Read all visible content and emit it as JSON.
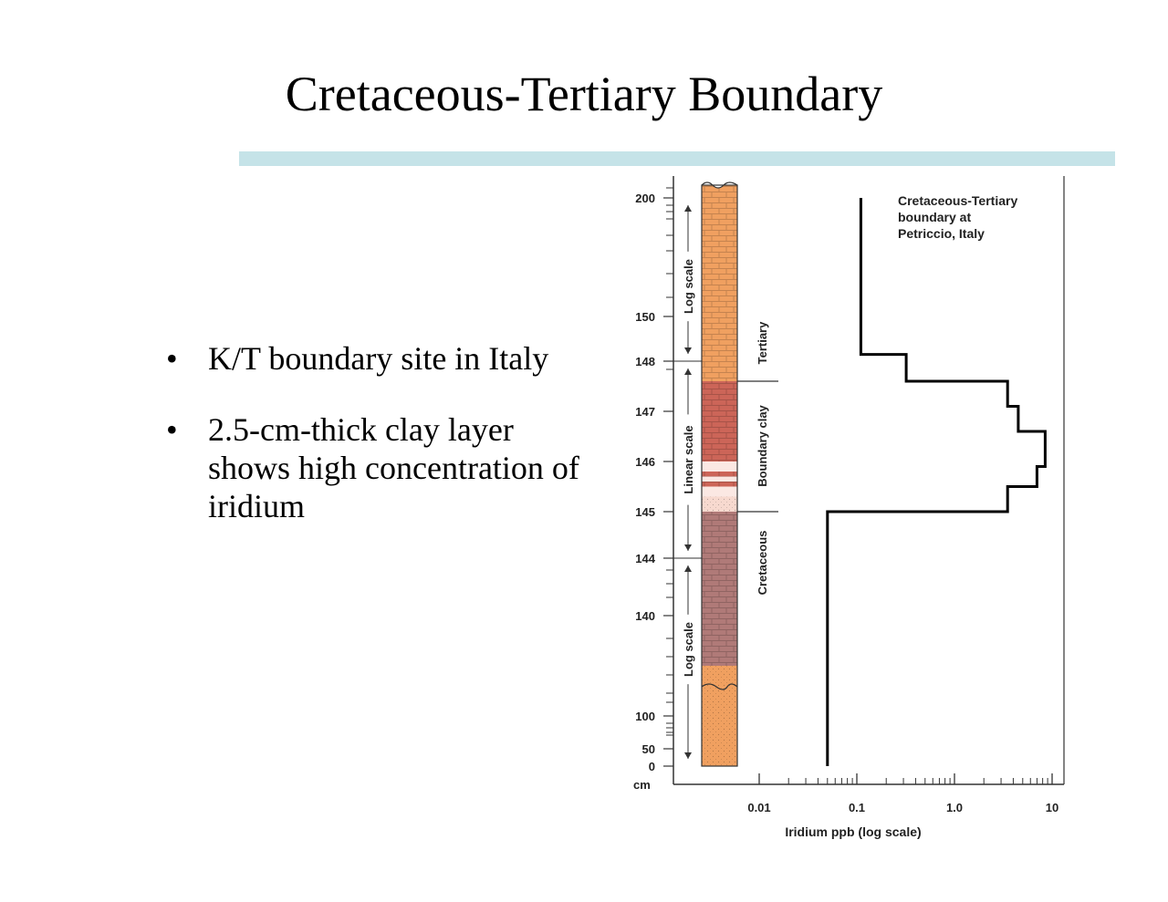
{
  "slide": {
    "title": "Cretaceous-Tertiary Boundary",
    "bullets": [
      "K/T boundary site in Italy",
      "2.5-cm-thick clay layer shows high concentration of iridium"
    ],
    "accent_color": "#c5e3e8"
  },
  "chart_data": {
    "type": "line",
    "title": "Cretaceous-Tertiary boundary at Petriccio, Italy",
    "xlabel": "Iridium ppb (log scale)",
    "ylabel": "cm",
    "x_scale": "log",
    "xlim": [
      0.001,
      10
    ],
    "x_ticks": [
      "0.01",
      "0.1",
      "1.0",
      "10"
    ],
    "y_ticks": [
      "200",
      "150",
      "148",
      "147",
      "146",
      "145",
      "144",
      "140",
      "100",
      "50",
      "0"
    ],
    "y_scale_labels": [
      "Log scale",
      "Linear scale",
      "Log scale"
    ],
    "layers": [
      {
        "name": "Tertiary",
        "from": 147.6,
        "to": 200,
        "color": "#f0a060"
      },
      {
        "name": "Boundary clay",
        "from": 145,
        "to": 147.6,
        "color": "#cc6558"
      },
      {
        "name": "Cretaceous",
        "from": 120,
        "to": 145,
        "color": "#b07a78"
      },
      {
        "name": "",
        "from": 0,
        "to": 120,
        "color": "#f0a060"
      }
    ],
    "series": [
      {
        "values": [
          {
            "depth": "0",
            "x": 0.05
          },
          {
            "depth": "145",
            "x": 0.05
          },
          {
            "depth": "145",
            "x": 3.5
          },
          {
            "depth": "145.5",
            "x": 3.5
          },
          {
            "depth": "145.5",
            "x": 7
          },
          {
            "depth": "145.9",
            "x": 7
          },
          {
            "depth": "145.9",
            "x": 8.5
          },
          {
            "depth": "146.6",
            "x": 8.5
          },
          {
            "depth": "146.6",
            "x": 4.5
          },
          {
            "depth": "147.1",
            "x": 4.5
          },
          {
            "depth": "147.1",
            "x": 3.5
          },
          {
            "depth": "147.6",
            "x": 3.5
          },
          {
            "depth": "147.6",
            "x": 0.32
          },
          {
            "depth": "148.3",
            "x": 0.32
          },
          {
            "depth": "148.3",
            "x": 0.11
          },
          {
            "depth": "200",
            "x": 0.11
          }
        ]
      }
    ]
  }
}
